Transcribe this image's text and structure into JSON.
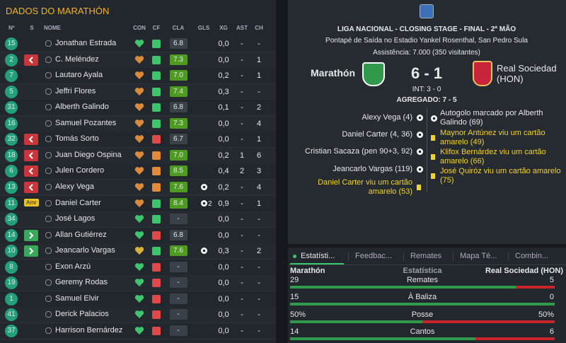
{
  "squad": {
    "title": "DADOS DO MARATHÓN",
    "columns": [
      "Nº",
      "S",
      "NOME",
      "CON",
      "CF",
      "CLA",
      "GLS",
      "XG",
      "AST",
      "CH"
    ],
    "rows": [
      {
        "no": "15",
        "name": "Jonathan Estrada",
        "con": "#3ec46d",
        "cf": "#3ec46d",
        "cla": "6.8",
        "cla_color": "#3b4148",
        "xg": "0,0",
        "ast": "-",
        "ch": "-"
      },
      {
        "no": "2",
        "sub": "out",
        "name": "C. Meléndez",
        "con": "#d98a3a",
        "cf": "#3ec46d",
        "cla": "7.3",
        "cla_color": "#4e9a22",
        "xg": "0,0",
        "ast": "-",
        "ch": "1"
      },
      {
        "no": "7",
        "name": "Lautaro Ayala",
        "con": "#d98a3a",
        "cf": "#3ec46d",
        "cla": "7.0",
        "cla_color": "#4e9a22",
        "xg": "0,2",
        "ast": "-",
        "ch": "1"
      },
      {
        "no": "5",
        "name": "Jeffri Flores",
        "con": "#d98a3a",
        "cf": "#3ec46d",
        "cla": "7.4",
        "cla_color": "#4e9a22",
        "xg": "0,3",
        "ast": "-",
        "ch": "-"
      },
      {
        "no": "31",
        "name": "Alberth Galindo",
        "con": "#d98a3a",
        "cf": "#3ec46d",
        "cla": "6.8",
        "cla_color": "#3b4148",
        "xg": "0,1",
        "ast": "-",
        "ch": "2"
      },
      {
        "no": "16",
        "name": "Samuel Pozantes",
        "con": "#d98a3a",
        "cf": "#3ec46d",
        "cla": "7.3",
        "cla_color": "#4e9a22",
        "xg": "0,0",
        "ast": "-",
        "ch": "4"
      },
      {
        "no": "32",
        "sub": "out",
        "name": "Tomás Sorto",
        "con": "#d98a3a",
        "cf": "#e0484a",
        "cla": "6.7",
        "cla_color": "#3b4148",
        "xg": "0,0",
        "ast": "-",
        "ch": "1"
      },
      {
        "no": "18",
        "sub": "out",
        "name": "Juan Diego Ospina",
        "con": "#d98a3a",
        "cf": "#e08a3a",
        "cla": "7.0",
        "cla_color": "#4e9a22",
        "xg": "0,2",
        "ast": "1",
        "ch": "6"
      },
      {
        "no": "6",
        "sub": "out",
        "name": "Julen Cordero",
        "con": "#d98a3a",
        "cf": "#e08a3a",
        "cla": "8.5",
        "cla_color": "#4e9a22",
        "xg": "0,4",
        "ast": "2",
        "ch": "3"
      },
      {
        "no": "13",
        "sub": "out",
        "name": "Alexy Vega",
        "con": "#d98a3a",
        "cf": "#e08a3a",
        "cla": "7.6",
        "cla_color": "#4e9a22",
        "goals": 1,
        "xg": "0,2",
        "ast": "-",
        "ch": "4"
      },
      {
        "no": "11",
        "s": "Amr",
        "name": "Daniel Carter",
        "con": "#d98a3a",
        "cf": "#3ec46d",
        "cla": "8.4",
        "cla_color": "#4e9a22",
        "goals": 2,
        "xg": "0,9",
        "ast": "-",
        "ch": "1"
      },
      {
        "no": "34",
        "name": "José Lagos",
        "con": "#3ec46d",
        "cf": "#3ec46d",
        "cla": "-",
        "cla_color": "#3b4148",
        "xg": "0,0",
        "ast": "-",
        "ch": "-"
      },
      {
        "no": "14",
        "sub": "in",
        "name": "Allan Gutiérrez",
        "con": "#3ec46d",
        "cf": "#e0484a",
        "cla": "6.8",
        "cla_color": "#3b4148",
        "xg": "0,0",
        "ast": "-",
        "ch": "-"
      },
      {
        "no": "10",
        "sub": "in",
        "name": "Jeancarlo Vargas",
        "con": "#d9b03a",
        "cf": "#3ec46d",
        "cla": "7.6",
        "cla_color": "#4e9a22",
        "goals": 1,
        "xg": "0,3",
        "ast": "-",
        "ch": "2"
      },
      {
        "no": "8",
        "name": "Exon Arzú",
        "con": "#3ec46d",
        "cf": "#e0484a",
        "cla": "-",
        "cla_color": "#3b4148",
        "xg": "0,0",
        "ast": "-",
        "ch": "-"
      },
      {
        "no": "19",
        "name": "Geremy Rodas",
        "con": "#3ec46d",
        "cf": "#e0484a",
        "cla": "-",
        "cla_color": "#3b4148",
        "xg": "0,0",
        "ast": "-",
        "ch": "-"
      },
      {
        "no": "1",
        "name": "Samuel Elvir",
        "con": "#3ec46d",
        "cf": "#e0484a",
        "cla": "-",
        "cla_color": "#3b4148",
        "xg": "0,0",
        "ast": "-",
        "ch": "-"
      },
      {
        "no": "41",
        "name": "Derick Palacios",
        "con": "#3ec46d",
        "cf": "#e0484a",
        "cla": "-",
        "cla_color": "#3b4148",
        "xg": "0,0",
        "ast": "-",
        "ch": "-"
      },
      {
        "no": "37",
        "name": "Harrison Bernárdez",
        "con": "#3ec46d",
        "cf": "#e0484a",
        "cla": "-",
        "cla_color": "#3b4148",
        "xg": "0,0",
        "ast": "-",
        "ch": "-"
      }
    ]
  },
  "match": {
    "competition": "LIGA NACIONAL - CLOSING STAGE - FINAL - 2ª MÃO",
    "venue": "Pontapé de Saída no Estadio Yankel Rosenthal, San Pedro Sula",
    "attendance": "Assistência: 7.000 (350 visitantes)",
    "home": "Marathón",
    "away_line1": "Real Sociedad",
    "away_line2": "(HON)",
    "score": "6 - 1",
    "halftime": "INT: 3 - 0",
    "aggregate": "AGREGADO: 7 - 5",
    "home_events": [
      {
        "text": "Alexy Vega (4)",
        "kind": "goal"
      },
      {
        "text": "Daniel Carter (4, 36)",
        "kind": "goal"
      },
      {
        "text": "Cristian Sacaza (pen 90+3, 92)",
        "kind": "goal"
      },
      {
        "text": "Jeancarlo Vargas (119)",
        "kind": "goal"
      },
      {
        "text": "Daniel Carter viu um cartão amarelo (53)",
        "kind": "card"
      }
    ],
    "away_events": [
      {
        "text": "Autogolo marcado por Alberth Galindo (69)",
        "kind": "goal"
      },
      {
        "text": "Maynor Antúnez viu um cartão amarelo (49)",
        "kind": "card"
      },
      {
        "text": "Klifox Bernárdez viu um cartão amarelo (66)",
        "kind": "card"
      },
      {
        "text": "José Quiróz viu um cartão amarelo (75)",
        "kind": "card"
      }
    ]
  },
  "tabs": [
    "Estatísti...",
    "Feedbac...",
    "Remates",
    "Mapa Té...",
    "Combin..."
  ],
  "stats": {
    "home": "Marathón",
    "label": "Estatística",
    "away": "Real Sociedad (HON)",
    "rows": [
      {
        "name": "Remates",
        "home": 29,
        "away": 5
      },
      {
        "name": "À Baliza",
        "home": 15,
        "away": 0
      },
      {
        "name": "Posse",
        "home": 50,
        "away": 50,
        "home_label": "50%",
        "away_label": "50%"
      },
      {
        "name": "Cantos",
        "home": 14,
        "away": 6
      }
    ]
  }
}
